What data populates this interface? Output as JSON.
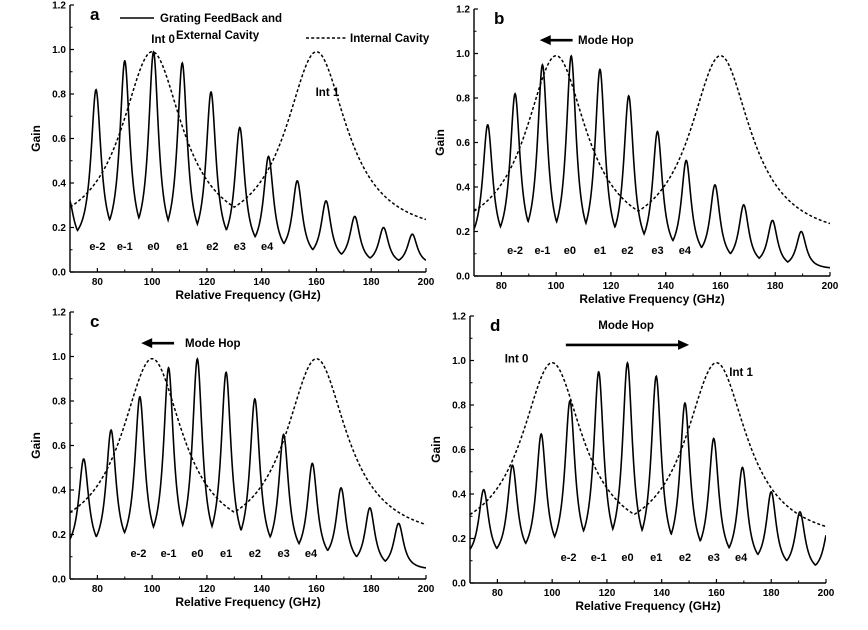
{
  "chart_data": [
    {
      "type": "line",
      "panel": "a",
      "xlabel": "Relative Frequency (GHz)",
      "ylabel": "Gain",
      "xlim": [
        70,
        200
      ],
      "ylim": [
        0,
        1.2
      ],
      "xticks": [
        "80",
        "100",
        "120",
        "140",
        "160",
        "180",
        "200"
      ],
      "yticks": [
        "0.0",
        "0.2",
        "0.4",
        "0.6",
        "0.8",
        "1.0",
        "1.2"
      ],
      "legend": [
        {
          "label": "Grating FeedBack and\nExternal Cavity",
          "style": "solid"
        },
        {
          "label": "Internal Cavity",
          "style": "dashed"
        }
      ],
      "series": [
        {
          "style": "solid",
          "peaks_x": [
            69.5,
            79.5,
            90,
            100.5,
            111,
            121.5,
            132,
            142.5,
            153,
            163.5,
            174,
            184.5,
            195
          ],
          "peaks_y": [
            0.33,
            0.82,
            0.95,
            0.99,
            0.94,
            0.81,
            0.65,
            0.52,
            0.41,
            0.32,
            0.25,
            0.2,
            0.17
          ],
          "floor_y": [
            0.12,
            0.12,
            0.12,
            0.11,
            0.1,
            0.1,
            0.09,
            0.08,
            0.06,
            0.05,
            0.04,
            0.03,
            0.03
          ]
        },
        {
          "style": "dashed",
          "peaks_x": [
            100,
            160
          ],
          "peaks_y": [
            0.99,
            0.99
          ],
          "min_y": 0.15
        }
      ],
      "mode_labels": [
        "e-2",
        "e-1",
        "e0",
        "e1",
        "e2",
        "e3",
        "e4"
      ],
      "mode_label_x": [
        80,
        90,
        100.5,
        111,
        122,
        132,
        142
      ],
      "annotations": [
        {
          "text": "Int 0",
          "x": 104,
          "y": 1.03
        },
        {
          "text": "Int 1",
          "x": 164,
          "y": 0.79
        }
      ]
    },
    {
      "type": "line",
      "panel": "b",
      "xlabel": "Relative Frequency (GHz)",
      "ylabel": "Gain",
      "xlim": [
        70,
        200
      ],
      "ylim": [
        0,
        1.2
      ],
      "xticks": [
        "80",
        "100",
        "120",
        "140",
        "160",
        "180",
        "200"
      ],
      "yticks": [
        "0.0",
        "0.2",
        "0.4",
        "0.6",
        "0.8",
        "1.0",
        "1.2"
      ],
      "series": [
        {
          "style": "solid",
          "peaks_x": [
            75,
            85,
            95,
            105.5,
            116,
            126.5,
            137,
            147.5,
            158,
            168.5,
            179,
            189.5
          ],
          "peaks_y": [
            0.68,
            0.82,
            0.95,
            0.99,
            0.93,
            0.81,
            0.65,
            0.52,
            0.41,
            0.32,
            0.25,
            0.2
          ],
          "floor_y": [
            0.12,
            0.12,
            0.12,
            0.11,
            0.11,
            0.1,
            0.09,
            0.08,
            0.06,
            0.05,
            0.04,
            0.03
          ]
        },
        {
          "style": "dashed",
          "peaks_x": [
            100,
            160
          ],
          "peaks_y": [
            0.99,
            0.99
          ],
          "min_y": 0.15
        }
      ],
      "mode_labels": [
        "e-2",
        "e-1",
        "e0",
        "e1",
        "e2",
        "e3",
        "e4"
      ],
      "mode_label_x": [
        85,
        95,
        105,
        116,
        126,
        137,
        147
      ],
      "mode_hop": {
        "text": "Mode Hop",
        "direction": "left",
        "arrow_from": 106,
        "arrow_to": 94,
        "arrow_y": 1.06,
        "text_x": 108,
        "text_y": 1.06
      }
    },
    {
      "type": "line",
      "panel": "c",
      "xlabel": "Relative Frequency (GHz)",
      "ylabel": "Gain",
      "xlim": [
        70,
        200
      ],
      "ylim": [
        0,
        1.2
      ],
      "xticks": [
        "80",
        "100",
        "120",
        "140",
        "160",
        "180",
        "200"
      ],
      "yticks": [
        "0.0",
        "0.2",
        "0.4",
        "0.6",
        "0.8",
        "1.0",
        "1.2"
      ],
      "series": [
        {
          "style": "solid",
          "peaks_x": [
            75,
            85,
            95.5,
            106,
            116.5,
            127,
            137.5,
            148,
            158.5,
            169,
            179.5,
            190
          ],
          "peaks_y": [
            0.54,
            0.67,
            0.82,
            0.95,
            0.99,
            0.93,
            0.81,
            0.65,
            0.52,
            0.41,
            0.32,
            0.25
          ],
          "floor_y": [
            0.11,
            0.11,
            0.12,
            0.12,
            0.11,
            0.11,
            0.1,
            0.09,
            0.08,
            0.06,
            0.05,
            0.04
          ]
        },
        {
          "style": "dashed",
          "peaks_x": [
            100,
            160
          ],
          "peaks_y": [
            0.99,
            0.99
          ],
          "min_y": 0.16
        }
      ],
      "mode_labels": [
        "e-2",
        "e-1",
        "e0",
        "e1",
        "e2",
        "e3",
        "e4"
      ],
      "mode_label_x": [
        95,
        106,
        116.5,
        127,
        137.5,
        148,
        158
      ],
      "mode_hop": {
        "text": "Mode Hop",
        "direction": "left",
        "arrow_from": 108,
        "arrow_to": 96,
        "arrow_y": 1.06,
        "text_x": 112,
        "text_y": 1.06
      }
    },
    {
      "type": "line",
      "panel": "d",
      "xlabel": "Relative Frequency (GHz)",
      "ylabel": "Gain",
      "xlim": [
        70,
        200
      ],
      "ylim": [
        0,
        1.2
      ],
      "xticks": [
        "80",
        "100",
        "120",
        "140",
        "160",
        "180",
        "200"
      ],
      "yticks": [
        "0.0",
        "0.2",
        "0.4",
        "0.6",
        "0.8",
        "1.0",
        "1.2"
      ],
      "series": [
        {
          "style": "solid",
          "peaks_x": [
            75,
            85.5,
            96,
            106.5,
            117,
            127.5,
            138,
            148.5,
            159,
            169.5,
            180,
            190.5,
            201
          ],
          "peaks_y": [
            0.42,
            0.53,
            0.67,
            0.82,
            0.95,
            0.99,
            0.93,
            0.81,
            0.65,
            0.52,
            0.41,
            0.32,
            0.25
          ],
          "floor_y": [
            0.1,
            0.1,
            0.11,
            0.12,
            0.12,
            0.11,
            0.11,
            0.1,
            0.09,
            0.08,
            0.06,
            0.05,
            0.04
          ]
        },
        {
          "style": "dashed",
          "peaks_x": [
            100,
            160
          ],
          "peaks_y": [
            0.99,
            0.99
          ],
          "min_y": 0.17
        }
      ],
      "mode_labels": [
        "e-2",
        "e-1",
        "e0",
        "e1",
        "e2",
        "e3",
        "e4"
      ],
      "mode_label_x": [
        106,
        117,
        127.5,
        138,
        148.5,
        159,
        169
      ],
      "mode_hop": {
        "text": "Mode Hop",
        "direction": "right",
        "arrow_from": 105,
        "arrow_to": 150,
        "arrow_y": 1.07,
        "text_x": 127,
        "text_y": 1.16
      },
      "annotations": [
        {
          "text": "Int 0",
          "x": 87,
          "y": 0.99
        },
        {
          "text": "Int 1",
          "x": 169,
          "y": 0.93
        }
      ]
    }
  ]
}
